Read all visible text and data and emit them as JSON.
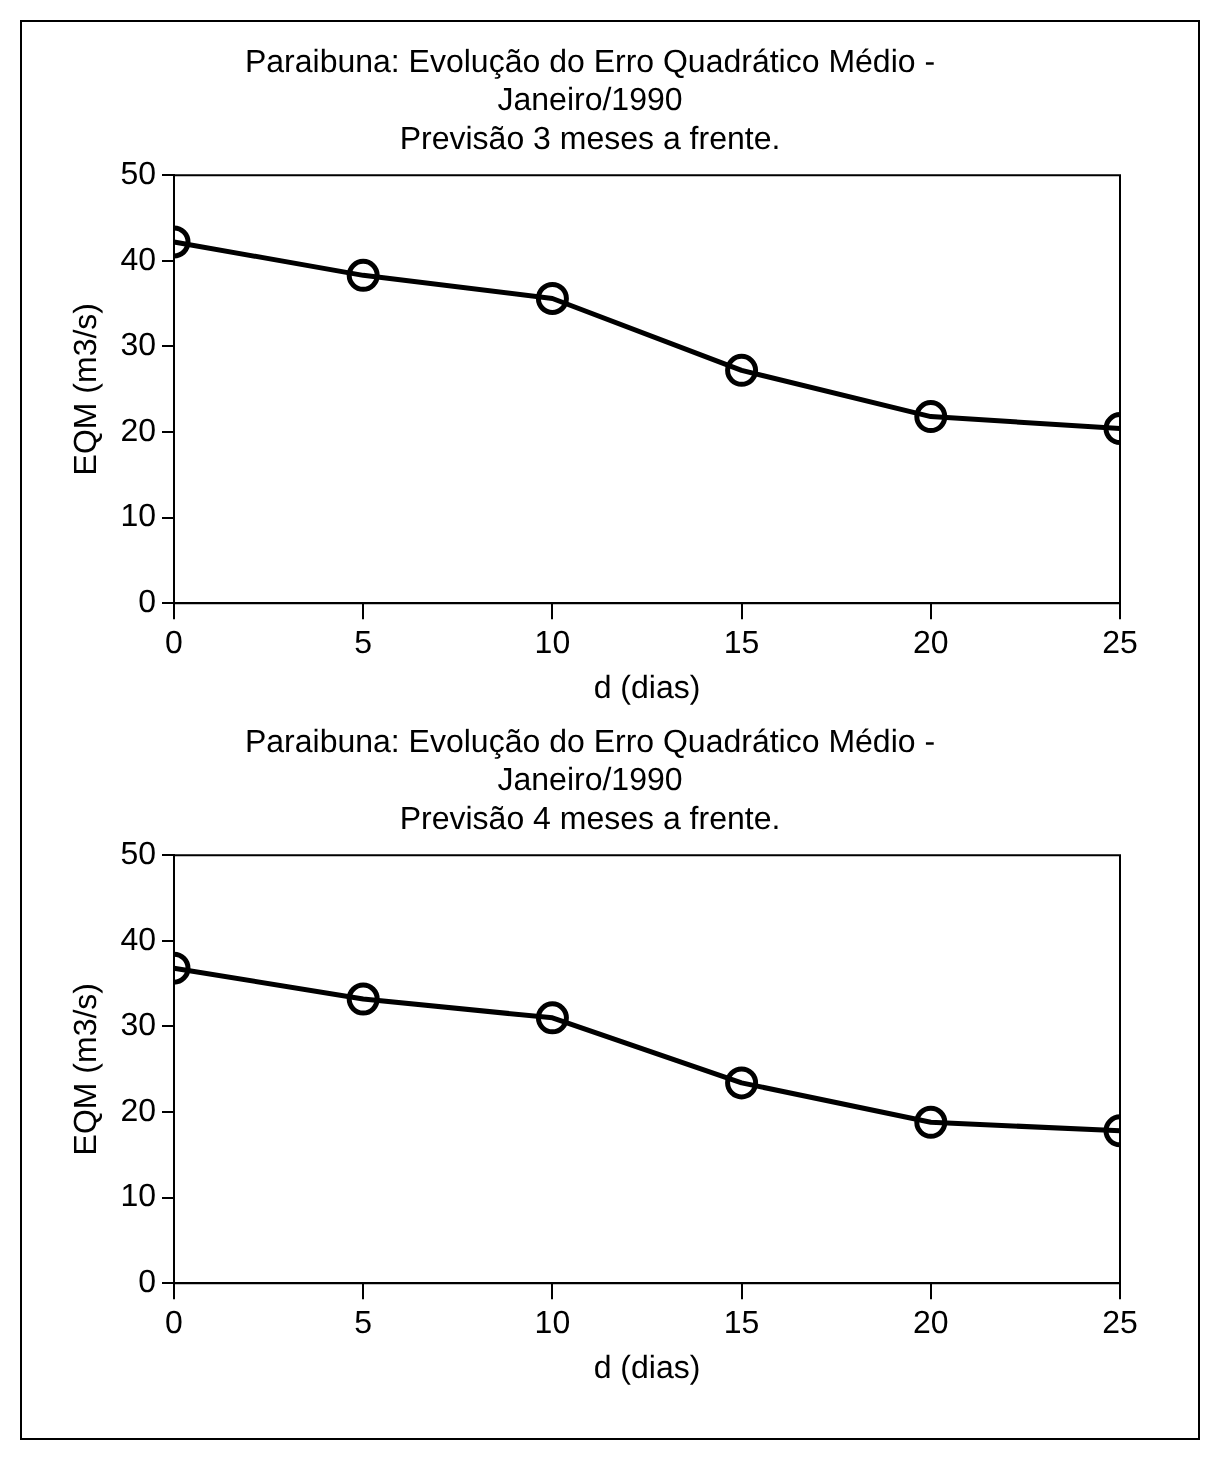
{
  "chart_data": [
    {
      "type": "line",
      "title": "Paraibuna: Evolução do Erro Quadrático Médio - Janeiro/1990",
      "subtitle": "Previsão 3 meses a frente.",
      "xlabel": "d (dias)",
      "ylabel": "EQM (m3/s)",
      "x": [
        0,
        5,
        10,
        15,
        20,
        25
      ],
      "series": [
        {
          "color": "#000000",
          "values": [
            42.2,
            38.3,
            35.6,
            27.2,
            21.8,
            20.4
          ]
        }
      ],
      "xlim": [
        0,
        25
      ],
      "xticks": [
        0,
        5,
        10,
        15,
        20,
        25
      ],
      "ylim": [
        0,
        50
      ],
      "yticks": [
        0,
        10,
        20,
        30,
        40,
        50
      ],
      "grid": false,
      "legend": false,
      "marker": "circle",
      "line_style": "solid"
    },
    {
      "type": "line",
      "title": "Paraibuna: Evolução do Erro Quadrático Médio - Janeiro/1990",
      "subtitle": "Previsão 4 meses a frente.",
      "xlabel": "d (dias)",
      "ylabel": "EQM (m3/s)",
      "x": [
        0,
        5,
        10,
        15,
        20,
        25
      ],
      "series": [
        {
          "color": "#000000",
          "values": [
            36.8,
            33.2,
            31.0,
            23.4,
            18.8,
            17.8
          ]
        }
      ],
      "xlim": [
        0,
        25
      ],
      "xticks": [
        0,
        5,
        10,
        15,
        20,
        25
      ],
      "ylim": [
        0,
        50
      ],
      "yticks": [
        0,
        10,
        20,
        30,
        40,
        50
      ],
      "grid": false,
      "legend": false,
      "marker": "circle",
      "line_style": "solid"
    }
  ]
}
